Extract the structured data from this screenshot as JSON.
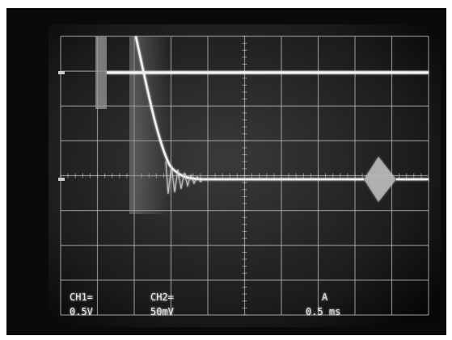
{
  "readouts": [
    {
      "channel": "CH1=",
      "scale": "0.5V"
    },
    {
      "channel": "CH2=",
      "scale": "50mV"
    },
    {
      "channel": "A",
      "scale": "0.5 ms"
    }
  ]
}
